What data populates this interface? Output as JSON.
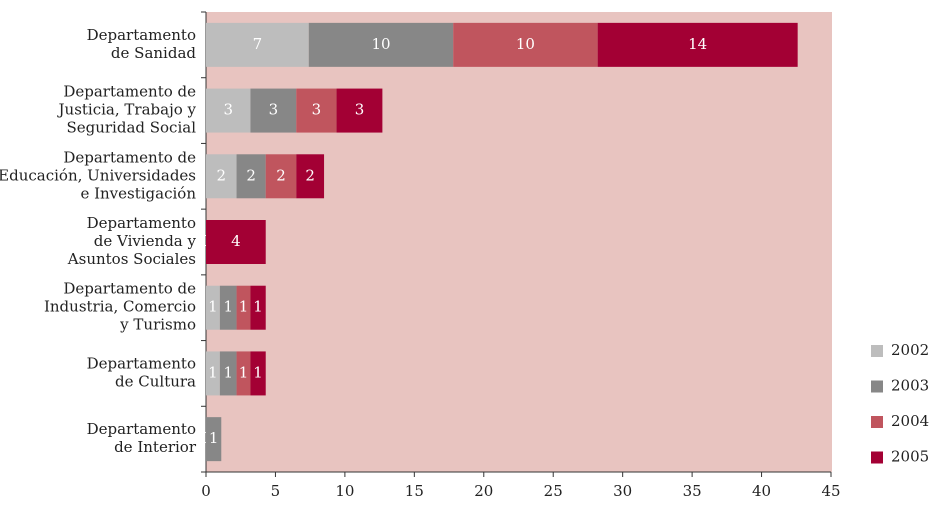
{
  "chart_data": {
    "type": "stacked-bar-horizontal",
    "categories": [
      "Departamento\nde Sanidad",
      "Departamento de\nJusticia, Trabajo y\nSeguridad Social",
      "Departamento de\nEducación, Universidades\ne Investigación",
      "Departamento\nde Vivienda y\nAsuntos Sociales",
      "Departamento de\nIndustria, Comercio\ny Turismo",
      "Departamento\nde Cultura",
      "Departamento\nde Interior"
    ],
    "series": [
      {
        "name": "2002",
        "color": "#bdbdbd",
        "values": [
          7.4,
          3.2,
          2.2,
          0,
          1.0,
          1.0,
          0
        ],
        "value_labels": [
          "7",
          "3",
          "2",
          "0",
          "1",
          "1",
          "0"
        ]
      },
      {
        "name": "2003",
        "color": "#878787",
        "values": [
          10.4,
          3.3,
          2.1,
          0,
          1.2,
          1.2,
          1.1
        ],
        "value_labels": [
          "10",
          "3",
          "2",
          "0",
          "1",
          "1",
          "1"
        ]
      },
      {
        "name": "2004",
        "color": "#c0555e",
        "values": [
          10.4,
          2.9,
          2.2,
          0,
          1.0,
          1.0,
          0
        ],
        "value_labels": [
          "10",
          "3",
          "2",
          "0",
          "1",
          "1",
          null
        ]
      },
      {
        "name": "2005",
        "color": "#a30034",
        "values": [
          14.4,
          3.3,
          2.0,
          4.3,
          1.1,
          1.1,
          0
        ],
        "value_labels": [
          "14",
          "3",
          "2",
          "4",
          "1",
          "1",
          null
        ]
      }
    ],
    "xlim": [
      0,
      45
    ],
    "xticks": [
      0,
      5,
      10,
      15,
      20,
      25,
      30,
      35,
      40,
      45
    ],
    "plot_background": "#e8c4c0",
    "legend": "right"
  }
}
